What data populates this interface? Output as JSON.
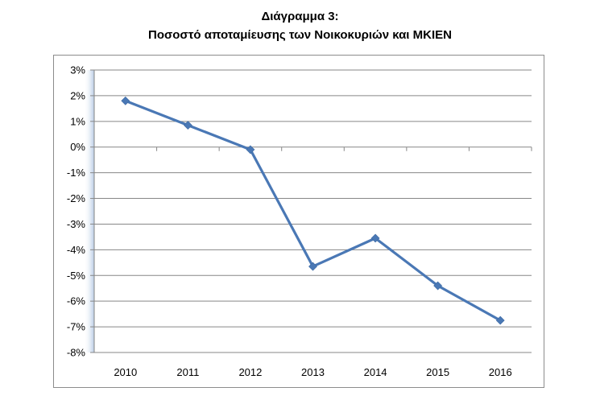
{
  "chart_data": {
    "type": "line",
    "title": "Διάγραμμα 3:",
    "subtitle": "Ποσοστό αποταμίευσης των Νοικοκυριών και ΜΚΙΕΝ",
    "xlabel": "",
    "ylabel": "",
    "categories": [
      "2010",
      "2011",
      "2012",
      "2013",
      "2014",
      "2015",
      "2016"
    ],
    "series": [
      {
        "values": [
          1.8,
          0.85,
          -0.1,
          -4.65,
          -3.55,
          -5.4,
          -6.75
        ]
      }
    ],
    "ylim": [
      -8,
      3
    ],
    "yticks": [
      3,
      2,
      1,
      0,
      -1,
      -2,
      -3,
      -4,
      -5,
      -6,
      -7,
      -8
    ],
    "ytick_labels": [
      "3%",
      "2%",
      "1%",
      "0%",
      "-1%",
      "-2%",
      "-3%",
      "-4%",
      "-5%",
      "-6%",
      "-7%",
      "-8%"
    ],
    "grid": true,
    "legend": "none",
    "colors": {
      "line": "#4a78b5",
      "marker": "#4a78b5",
      "grid": "#878787"
    }
  }
}
